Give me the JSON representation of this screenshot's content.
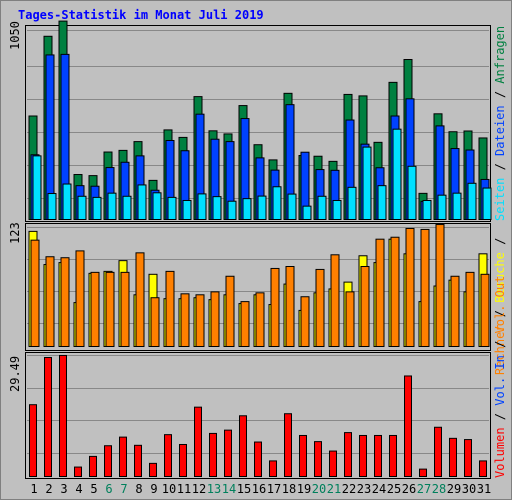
{
  "title": "Tages-Statistik im Monat Juli 2019",
  "colors": {
    "background": "#c0c0c0",
    "frame": "#808080",
    "title": "#0000ff",
    "gridline": "#888888",
    "anfragen": "#008040",
    "dateien": "#0042ff",
    "seiten": "#00e0ff",
    "besuche": "#ffff00",
    "rechner": "#ff8000",
    "volumen": "#ff0000",
    "weekday": "#000000",
    "weekend": "#00805c",
    "separator": "#000000"
  },
  "chart_data": {
    "type": "bar",
    "title": "Tages-Statistik im Monat Juli 2019",
    "categories": [
      "1",
      "2",
      "3",
      "4",
      "5",
      "6",
      "7",
      "8",
      "9",
      "10",
      "11",
      "12",
      "13",
      "14",
      "15",
      "16",
      "17",
      "18",
      "19",
      "20",
      "21",
      "22",
      "23",
      "24",
      "25",
      "26",
      "27",
      "28",
      "29",
      "30",
      "31"
    ],
    "weekend_days": [
      "6",
      "7",
      "13",
      "14",
      "20",
      "21",
      "27",
      "28"
    ],
    "grid": true,
    "panels": [
      {
        "id": "top",
        "ymax_label": "1050",
        "ymax": 1050,
        "right_labels": [
          {
            "text": "Anfragen",
            "color": "#008040"
          },
          {
            "text": "Dateien",
            "color": "#0042ff"
          },
          {
            "text": "Seiten",
            "color": "#00e0ff"
          }
        ],
        "series": [
          {
            "name": "Anfragen",
            "color": "#008040",
            "values": [
              566,
              1002,
              1085,
              246,
              240,
              369,
              378,
              426,
              214,
              490,
              449,
              672,
              485,
              468,
              623,
              409,
              326,
              690,
              350,
              346,
              318,
              684,
              676,
              422,
              750,
              875,
              143,
              578,
              480,
              484,
              446
            ]
          },
          {
            "name": "Dateien",
            "color": "#0042ff",
            "values": [
              354,
              900,
              903,
              185,
              182,
              284,
              313,
              348,
              160,
              432,
              376,
              576,
              439,
              426,
              552,
              337,
              270,
              628,
              368,
              273,
              269,
              544,
              412,
              283,
              566,
              660,
              99,
              512,
              388,
              380,
              219
            ]
          },
          {
            "name": "Seiten",
            "color": "#00e0ff",
            "values": [
              348,
              142,
              194,
              127,
              121,
              144,
              127,
              189,
              146,
              121,
              104,
              140,
              125,
              100,
              114,
              128,
              179,
              139,
              73,
              127,
              104,
              176,
              396,
              185,
              494,
              291,
              104,
              133,
              144,
              198,
              172
            ]
          }
        ]
      },
      {
        "id": "middle",
        "ymax_label": "123",
        "ymax": 123,
        "right_labels": [
          {
            "text": "Besuche",
            "color": "#ffff00"
          },
          {
            "text": "Rechner",
            "color": "#ff8000"
          }
        ],
        "series": [
          {
            "name": "Besuche",
            "color": "#ffff00",
            "values": [
              118,
              84,
              86,
              45,
              75,
              77,
              88,
              53,
              74,
              49,
              49,
              50,
              48,
              53,
              44,
              53,
              43,
              64,
              37,
              55,
              59,
              66,
              93,
              86,
              110,
              95,
              46,
              62,
              68,
              56,
              95
            ]
          },
          {
            "name": "Rechner",
            "color": "#ff8000",
            "values": [
              109,
              92,
              91,
              98,
              76,
              76,
              76,
              96,
              50,
              77,
              54,
              53,
              56,
              72,
              46,
              55,
              80,
              82,
              51,
              79,
              94,
              56,
              82,
              110,
              112,
              121,
              120,
              125,
              72,
              76,
              74
            ]
          }
        ]
      },
      {
        "id": "bottom",
        "ymax_label": "29.49",
        "ymax": 29.49,
        "right_labels": [
          {
            "text": "Volumen",
            "color": "#ff0000"
          },
          {
            "text": "Vol. In",
            "color": "#0042ff"
          },
          {
            "text": "Vol. Out",
            "color": "#ff8000"
          }
        ],
        "series": [
          {
            "name": "Volumen",
            "color": "#ff0000",
            "values": [
              17.5,
              29.0,
              29.5,
              2.3,
              4.9,
              7.5,
              9.6,
              7.6,
              3.2,
              10.2,
              7.8,
              16.9,
              10.5,
              11.3,
              14.8,
              8.4,
              3.8,
              15.3,
              10.0,
              8.5,
              6.2,
              10.7,
              10.0,
              10.0,
              10.0,
              24.5,
              1.8,
              12.0,
              9.3,
              9.0,
              3.8
            ]
          }
        ]
      }
    ]
  }
}
